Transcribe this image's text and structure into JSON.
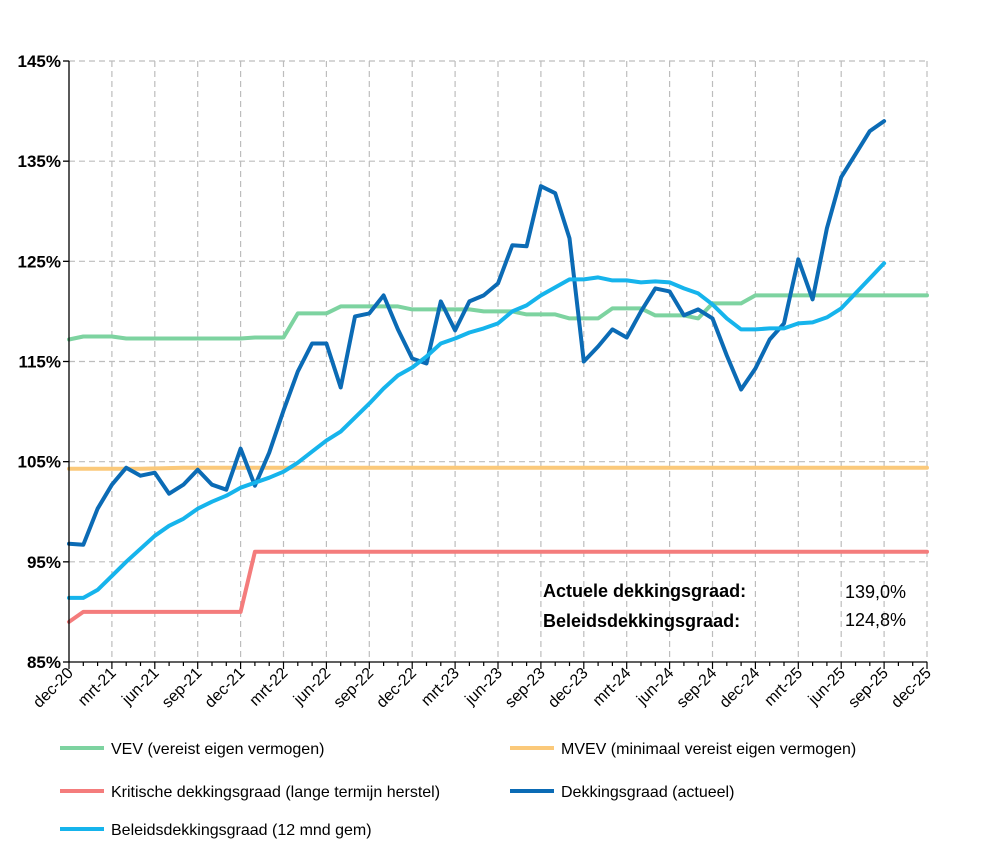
{
  "chart_data": {
    "type": "line",
    "title": "",
    "xlabel": "",
    "ylabel": "",
    "grid": true,
    "legend_position": "bottom",
    "ylim": [
      85,
      145
    ],
    "y_ticks": [
      85,
      95,
      105,
      115,
      125,
      135,
      145
    ],
    "y_tick_labels": [
      "85%",
      "95%",
      "105%",
      "115%",
      "125%",
      "135%",
      "145%"
    ],
    "x_tick_labels": [
      "dec-20",
      "mrt-21",
      "jun-21",
      "sep-21",
      "dec-21",
      "mrt-22",
      "jun-22",
      "sep-22",
      "dec-22",
      "mrt-23",
      "jun-23",
      "sep-23",
      "dec-23",
      "mrt-24",
      "jun-24",
      "sep-24",
      "dec-24",
      "mrt-25",
      "jun-25",
      "sep-25",
      "dec-25"
    ],
    "x_month_range": [
      0,
      60
    ],
    "series": [
      {
        "name": "VEV (vereist eigen vermogen)",
        "color": "#7dd3a0",
        "width": 4,
        "points": [
          [
            0,
            117.2
          ],
          [
            1,
            117.5
          ],
          [
            2,
            117.5
          ],
          [
            3,
            117.5
          ],
          [
            4,
            117.3
          ],
          [
            5,
            117.3
          ],
          [
            6,
            117.3
          ],
          [
            7,
            117.3
          ],
          [
            8,
            117.3
          ],
          [
            9,
            117.3
          ],
          [
            10,
            117.3
          ],
          [
            11,
            117.3
          ],
          [
            12,
            117.3
          ],
          [
            13,
            117.4
          ],
          [
            14,
            117.4
          ],
          [
            15,
            117.4
          ],
          [
            16,
            119.8
          ],
          [
            17,
            119.8
          ],
          [
            18,
            119.8
          ],
          [
            19,
            120.5
          ],
          [
            20,
            120.5
          ],
          [
            21,
            120.5
          ],
          [
            22,
            120.5
          ],
          [
            23,
            120.5
          ],
          [
            24,
            120.2
          ],
          [
            25,
            120.2
          ],
          [
            26,
            120.2
          ],
          [
            27,
            120.2
          ],
          [
            28,
            120.2
          ],
          [
            29,
            120.0
          ],
          [
            30,
            120.0
          ],
          [
            31,
            120.0
          ],
          [
            32,
            119.7
          ],
          [
            33,
            119.7
          ],
          [
            34,
            119.7
          ],
          [
            35,
            119.3
          ],
          [
            36,
            119.3
          ],
          [
            37,
            119.3
          ],
          [
            38,
            120.3
          ],
          [
            39,
            120.3
          ],
          [
            40,
            120.3
          ],
          [
            41,
            119.6
          ],
          [
            42,
            119.6
          ],
          [
            43,
            119.6
          ],
          [
            44,
            119.3
          ],
          [
            45,
            120.8
          ],
          [
            46,
            120.8
          ],
          [
            47,
            120.8
          ],
          [
            48,
            121.6
          ],
          [
            49,
            121.6
          ],
          [
            50,
            121.6
          ],
          [
            51,
            121.6
          ],
          [
            52,
            121.6
          ],
          [
            53,
            121.6
          ],
          [
            54,
            121.6
          ],
          [
            55,
            121.6
          ],
          [
            56,
            121.6
          ],
          [
            57,
            121.6
          ],
          [
            58,
            121.6
          ],
          [
            59,
            121.6
          ],
          [
            60,
            121.6
          ]
        ]
      },
      {
        "name": "MVEV (minimaal vereist eigen vermogen)",
        "color": "#fbc97a",
        "width": 4,
        "points": [
          [
            0,
            104.3
          ],
          [
            1,
            104.3
          ],
          [
            2,
            104.3
          ],
          [
            5,
            104.3
          ],
          [
            8,
            104.4
          ],
          [
            12,
            104.4
          ],
          [
            16,
            104.4
          ],
          [
            20,
            104.4
          ],
          [
            24,
            104.4
          ],
          [
            28,
            104.4
          ],
          [
            32,
            104.4
          ],
          [
            36,
            104.4
          ],
          [
            40,
            104.4
          ],
          [
            44,
            104.4
          ],
          [
            48,
            104.4
          ],
          [
            52,
            104.4
          ],
          [
            56,
            104.4
          ],
          [
            60,
            104.4
          ]
        ]
      },
      {
        "name": "Kritische dekkingsgraad (lange termijn herstel)",
        "color": "#f47c7c",
        "width": 4,
        "points": [
          [
            0,
            89.0
          ],
          [
            1,
            90.0
          ],
          [
            2,
            90.0
          ],
          [
            4,
            90.0
          ],
          [
            6,
            90.0
          ],
          [
            8,
            90.0
          ],
          [
            10,
            90.0
          ],
          [
            12,
            90.0
          ],
          [
            13,
            96.0
          ],
          [
            16,
            96.0
          ],
          [
            20,
            96.0
          ],
          [
            24,
            96.0
          ],
          [
            28,
            96.0
          ],
          [
            32,
            96.0
          ],
          [
            36,
            96.0
          ],
          [
            40,
            96.0
          ],
          [
            44,
            96.0
          ],
          [
            48,
            96.0
          ],
          [
            52,
            96.0
          ],
          [
            56,
            96.0
          ],
          [
            60,
            96.0
          ]
        ]
      },
      {
        "name": "Dekkingsgraad (actueel)",
        "color": "#0b6bb5",
        "width": 4,
        "points": [
          [
            0,
            96.8
          ],
          [
            1,
            96.7
          ],
          [
            2,
            100.3
          ],
          [
            3,
            102.7
          ],
          [
            4,
            104.4
          ],
          [
            5,
            103.6
          ],
          [
            6,
            103.9
          ],
          [
            7,
            101.8
          ],
          [
            8,
            102.7
          ],
          [
            9,
            104.2
          ],
          [
            10,
            102.7
          ],
          [
            11,
            102.2
          ],
          [
            12,
            106.3
          ],
          [
            13,
            102.6
          ],
          [
            14,
            105.9
          ],
          [
            15,
            110.1
          ],
          [
            16,
            114.0
          ],
          [
            17,
            116.8
          ],
          [
            18,
            116.8
          ],
          [
            19,
            112.4
          ],
          [
            20,
            119.5
          ],
          [
            21,
            119.8
          ],
          [
            22,
            121.6
          ],
          [
            23,
            118.2
          ],
          [
            24,
            115.3
          ],
          [
            25,
            114.8
          ],
          [
            26,
            121.0
          ],
          [
            27,
            118.1
          ],
          [
            28,
            121.0
          ],
          [
            29,
            121.6
          ],
          [
            30,
            122.8
          ],
          [
            31,
            126.6
          ],
          [
            32,
            126.5
          ],
          [
            33,
            132.5
          ],
          [
            34,
            131.8
          ],
          [
            35,
            127.3
          ],
          [
            36,
            115.0
          ],
          [
            37,
            116.5
          ],
          [
            38,
            118.2
          ],
          [
            39,
            117.4
          ],
          [
            40,
            120.0
          ],
          [
            41,
            122.3
          ],
          [
            42,
            122.0
          ],
          [
            43,
            119.6
          ],
          [
            44,
            120.2
          ],
          [
            45,
            119.3
          ],
          [
            46,
            115.6
          ],
          [
            47,
            112.2
          ],
          [
            48,
            114.3
          ],
          [
            49,
            117.2
          ],
          [
            50,
            118.8
          ],
          [
            51,
            125.2
          ],
          [
            52,
            121.2
          ],
          [
            53,
            128.3
          ],
          [
            54,
            133.4
          ],
          [
            55,
            135.7
          ],
          [
            56,
            138.0
          ],
          [
            57,
            139.0
          ]
        ]
      },
      {
        "name": "Beleidsdekkingsgraad (12 mnd gem)",
        "color": "#16b4ec",
        "width": 4,
        "points": [
          [
            0,
            91.4
          ],
          [
            1,
            91.4
          ],
          [
            2,
            92.2
          ],
          [
            3,
            93.6
          ],
          [
            4,
            95.0
          ],
          [
            5,
            96.3
          ],
          [
            6,
            97.6
          ],
          [
            7,
            98.6
          ],
          [
            8,
            99.3
          ],
          [
            9,
            100.3
          ],
          [
            10,
            101.0
          ],
          [
            11,
            101.6
          ],
          [
            12,
            102.4
          ],
          [
            13,
            102.9
          ],
          [
            14,
            103.4
          ],
          [
            15,
            104.0
          ],
          [
            16,
            104.9
          ],
          [
            17,
            106.0
          ],
          [
            18,
            107.1
          ],
          [
            19,
            108.0
          ],
          [
            20,
            109.4
          ],
          [
            21,
            110.8
          ],
          [
            22,
            112.3
          ],
          [
            23,
            113.6
          ],
          [
            24,
            114.4
          ],
          [
            25,
            115.5
          ],
          [
            26,
            116.8
          ],
          [
            27,
            117.3
          ],
          [
            28,
            117.9
          ],
          [
            29,
            118.3
          ],
          [
            30,
            118.8
          ],
          [
            31,
            120.0
          ],
          [
            32,
            120.6
          ],
          [
            33,
            121.6
          ],
          [
            34,
            122.4
          ],
          [
            35,
            123.2
          ],
          [
            36,
            123.2
          ],
          [
            37,
            123.4
          ],
          [
            38,
            123.1
          ],
          [
            39,
            123.1
          ],
          [
            40,
            122.9
          ],
          [
            41,
            123.0
          ],
          [
            42,
            122.9
          ],
          [
            43,
            122.3
          ],
          [
            44,
            121.8
          ],
          [
            45,
            120.7
          ],
          [
            46,
            119.3
          ],
          [
            47,
            118.2
          ],
          [
            48,
            118.2
          ],
          [
            49,
            118.3
          ],
          [
            50,
            118.3
          ],
          [
            51,
            118.8
          ],
          [
            52,
            118.9
          ],
          [
            53,
            119.4
          ],
          [
            54,
            120.3
          ],
          [
            55,
            121.8
          ],
          [
            56,
            123.3
          ],
          [
            57,
            124.8
          ]
        ]
      }
    ]
  },
  "annotations": {
    "actual_label": "Actuele dekkingsgraad:",
    "actual_value": "139,0%",
    "policy_label": "Beleidsdekkingsgraad:",
    "policy_value": "124,8%"
  }
}
